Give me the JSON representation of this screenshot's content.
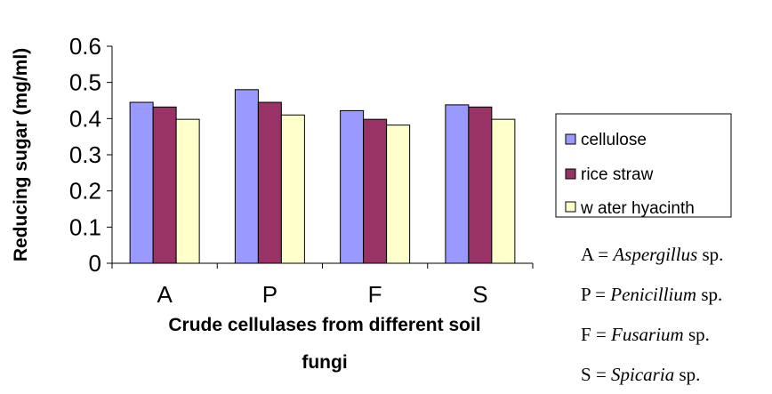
{
  "chart_data": {
    "type": "bar",
    "categories": [
      "A",
      "P",
      "F",
      "S"
    ],
    "series": [
      {
        "name": "cellulose",
        "values": [
          0.445,
          0.48,
          0.422,
          0.438
        ],
        "color": "#9999ff"
      },
      {
        "name": "rice straw",
        "values": [
          0.432,
          0.445,
          0.398,
          0.432
        ],
        "color": "#993366"
      },
      {
        "name": "w ater hyacinth",
        "values": [
          0.398,
          0.41,
          0.382,
          0.398
        ],
        "color": "#ffffcc"
      }
    ],
    "ylabel": "Reducing sugar (mg/ml)",
    "xlabel_lines": [
      "Crude cellulases from different soil",
      "fungi"
    ],
    "ylim": [
      0,
      0.6
    ],
    "yticks": [
      "0",
      "0.1",
      "0.2",
      "0.3",
      "0.4",
      "0.5",
      "0.6"
    ],
    "grid": false,
    "legend_position": "right"
  },
  "key": [
    {
      "letter": "A",
      "eq": " = ",
      "genus": "Aspergillus",
      "suffix": " sp."
    },
    {
      "letter": "P",
      "eq": " = ",
      "genus": "Penicillium",
      "suffix": " sp."
    },
    {
      "letter": "F",
      "eq": " = ",
      "genus": "Fusarium",
      "suffix": " sp."
    },
    {
      "letter": "S",
      "eq": " = ",
      "genus": "Spicaria",
      "suffix": " sp."
    }
  ]
}
